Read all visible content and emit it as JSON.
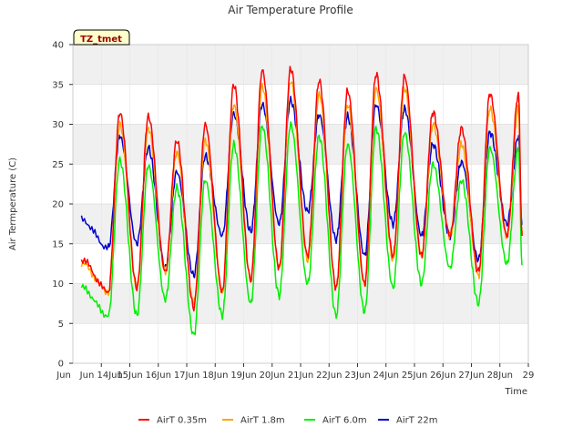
{
  "chart_data": {
    "type": "line",
    "title": "Air Temperature Profile",
    "xlabel": "Time",
    "ylabel": "Air Termperature (C)",
    "badge": "TZ_tmet",
    "ylim": [
      0,
      40
    ],
    "yticks": [
      0,
      5,
      10,
      15,
      20,
      25,
      30,
      35,
      40
    ],
    "xlim": [
      "Jun 13",
      "Jun 29"
    ],
    "xticks": [
      "Jun 14Jun",
      "15Jun",
      "16Jun",
      "17Jun",
      "18Jun",
      "19Jun",
      "20Jun",
      "21Jun",
      "22Jun",
      "23Jun",
      "24Jun",
      "25Jun",
      "26Jun",
      "27Jun",
      "28Jun",
      "29"
    ],
    "xtick_days": [
      14,
      15,
      16,
      17,
      18,
      19,
      20,
      21,
      22,
      23,
      24,
      25,
      26,
      27,
      28,
      29
    ],
    "x_first_tick_extra": "Jun",
    "grid": true,
    "legend_position": "bottom",
    "daily_days": [
      14,
      15,
      16,
      17,
      18,
      19,
      20,
      21,
      22,
      23,
      24,
      25,
      26,
      27,
      28
    ],
    "series": [
      {
        "name": "AirT 0.35m",
        "color": "#ff0000",
        "start": 13.3,
        "end": 28.78,
        "start_value": 13,
        "end_value": 16,
        "daily_min": [
          9,
          9.5,
          11.5,
          7,
          9,
          10.5,
          12,
          13.5,
          9.5,
          10,
          13.5,
          13.5,
          16,
          11.5,
          16
        ],
        "daily_max": [
          31.5,
          31,
          28,
          30,
          35,
          36.8,
          37,
          35.5,
          34.2,
          36.3,
          36,
          31.5,
          29.5,
          33.8,
          33.8
        ]
      },
      {
        "name": "AirT 1.8m",
        "color": "#ffa500",
        "start": 13.3,
        "end": 28.78,
        "start_value": 12.5,
        "end_value": 16,
        "daily_min": [
          9,
          9.5,
          11.5,
          7.5,
          9,
          10.5,
          12,
          13,
          9.5,
          10,
          13,
          13.5,
          16,
          11,
          16
        ],
        "daily_max": [
          30,
          29.5,
          26.5,
          28,
          32.5,
          34.8,
          35.5,
          33.8,
          32.5,
          34.5,
          34.5,
          30,
          27.5,
          32,
          32
        ]
      },
      {
        "name": "AirT 6.0m",
        "color": "#00ee00",
        "start": 13.3,
        "end": 28.78,
        "start_value": 9.5,
        "end_value": 12.5,
        "daily_min": [
          6,
          6,
          8,
          3.5,
          6,
          7.5,
          8.5,
          10,
          6,
          6.5,
          9.5,
          10,
          12,
          7.5,
          12.5
        ],
        "daily_max": [
          25.5,
          24.8,
          22,
          23,
          27.5,
          29.8,
          30,
          28.5,
          27.5,
          29.5,
          29,
          25,
          23,
          27,
          27
        ]
      },
      {
        "name": "AirT 22m",
        "color": "#0000cc",
        "start": 13.3,
        "end": 28.78,
        "start_value": 18,
        "end_value": 17.5,
        "daily_min": [
          14.5,
          15,
          12,
          11,
          16,
          16.5,
          17.5,
          19,
          15.5,
          13.5,
          17.5,
          16,
          16,
          13,
          17.5
        ],
        "daily_max": [
          28.5,
          27,
          24,
          26,
          31.3,
          32.5,
          33,
          31.2,
          31,
          32.5,
          32,
          27.5,
          25.3,
          29,
          28.5
        ]
      }
    ]
  }
}
